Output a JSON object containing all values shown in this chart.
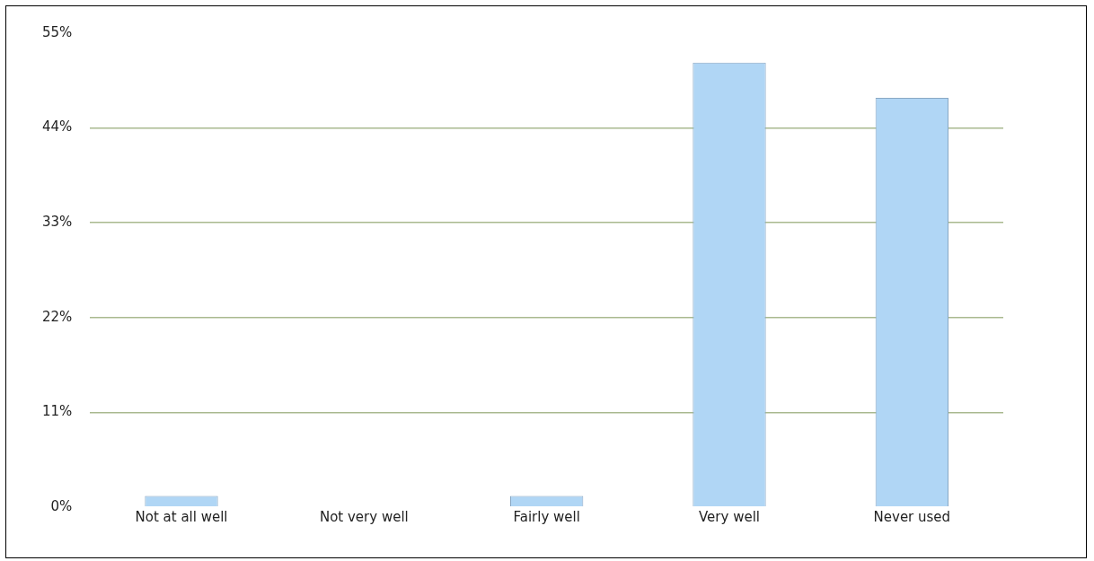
{
  "chart_data": {
    "type": "bar",
    "categories": [
      "Not at all well",
      "Not very well",
      "Fairly well",
      "Very well",
      "Never used"
    ],
    "values": [
      1.3,
      0,
      1.3,
      51.6,
      47.5
    ],
    "color": "#b0d6f5",
    "ylim": [
      0,
      55
    ],
    "yticks": [
      {
        "value": 0,
        "label": "0%"
      },
      {
        "value": 11,
        "label": "11%"
      },
      {
        "value": 22,
        "label": "22%"
      },
      {
        "value": 33,
        "label": "33%"
      },
      {
        "value": 44,
        "label": "44%"
      },
      {
        "value": 55,
        "label": "55%"
      }
    ],
    "grid": "y",
    "legend": false
  }
}
